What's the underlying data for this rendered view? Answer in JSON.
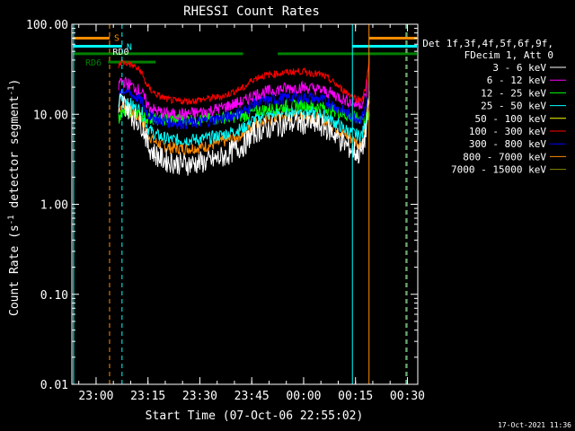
{
  "chart_data": {
    "type": "line",
    "title": "RHESSI Count Rates",
    "xlabel": "Start Time (07-Oct-06 22:55:02)",
    "ylabel": "Count Rate (s",
    "ylabel_sup": "-1",
    "ylabel_tail": " detector segment",
    "ylabel_close": ")",
    "yscale": "log",
    "ylim": [
      0.01,
      100
    ],
    "xlim_min": [
      -2.0,
      98.0
    ],
    "x_ticks": [
      {
        "x": 5,
        "label": "23:00"
      },
      {
        "x": 20,
        "label": "23:15"
      },
      {
        "x": 35,
        "label": "23:30"
      },
      {
        "x": 50,
        "label": "23:45"
      },
      {
        "x": 65,
        "label": "00:00"
      },
      {
        "x": 80,
        "label": "00:15"
      },
      {
        "x": 95,
        "label": "00:30"
      }
    ],
    "y_ticks": [
      {
        "y": 100,
        "label": "100.00"
      },
      {
        "y": 10,
        "label": "10.00"
      },
      {
        "y": 1,
        "label": "1.00"
      },
      {
        "y": 0.1,
        "label": "0.10"
      },
      {
        "y": 0.01,
        "label": "0.01"
      }
    ],
    "legend_header": [
      "Det 1f,3f,4f,5f,6f,9f,",
      "FDecim 1, Att 0"
    ],
    "legend_position": "right-outside",
    "series": [
      {
        "name": "3 - 6 keV",
        "color": "#ffffff",
        "x": [
          11.5,
          12,
          14,
          16,
          18,
          19,
          20,
          22,
          24,
          26,
          28,
          30,
          32,
          35,
          38,
          42,
          45,
          48,
          50,
          52,
          55,
          58,
          61,
          64,
          67,
          70,
          72,
          74,
          76,
          78,
          80,
          81,
          82,
          83,
          84
        ],
        "y": [
          11,
          14,
          12,
          9,
          8,
          6.5,
          4.5,
          3.6,
          3.2,
          3.0,
          2.9,
          2.8,
          2.8,
          2.9,
          3.0,
          3.4,
          4.0,
          4.6,
          6.0,
          6.6,
          7.0,
          7.5,
          7.9,
          8.0,
          7.8,
          7.4,
          6.8,
          6.0,
          5.0,
          4.3,
          3.8,
          3.6,
          4.0,
          6.5,
          14
        ]
      },
      {
        "name": "6 - 12 keV",
        "color": "#ff00ff",
        "x": [
          11.5,
          12,
          14,
          16,
          18,
          19,
          20,
          22,
          24,
          26,
          28,
          30,
          32,
          35,
          38,
          42,
          45,
          48,
          50,
          52,
          55,
          58,
          61,
          64,
          67,
          70,
          72,
          74,
          76,
          78,
          80,
          81,
          82,
          83,
          84
        ],
        "y": [
          20,
          24,
          22,
          20,
          18,
          15,
          12.5,
          11,
          10.5,
          10,
          10,
          10,
          10.2,
          10.5,
          11,
          12,
          13,
          14,
          16,
          17,
          18,
          19,
          19.5,
          20,
          19.5,
          18.5,
          17.5,
          16.5,
          15,
          14,
          13,
          13,
          13.5,
          16,
          42
        ]
      },
      {
        "name": "12 - 25 keV",
        "color": "#00ff00",
        "x": [
          11.5,
          14,
          16,
          18,
          20,
          24,
          28,
          32,
          36,
          40,
          44,
          48,
          50,
          52,
          55,
          58,
          61,
          64,
          67,
          70,
          72,
          74,
          76,
          78,
          80,
          82,
          84
        ],
        "y": [
          9,
          11,
          10,
          9.5,
          9,
          8.8,
          8.8,
          8.8,
          8.8,
          9,
          9.3,
          9.6,
          10.5,
          11,
          11.5,
          12,
          12.5,
          12.8,
          12.5,
          12,
          11.5,
          11,
          10.2,
          9.5,
          9,
          9,
          9.5
        ]
      },
      {
        "name": "25 - 50 keV",
        "color": "#00ffff",
        "x": [
          11.5,
          12,
          14,
          16,
          18,
          19,
          20,
          22,
          24,
          26,
          28,
          30,
          32,
          35,
          38,
          42,
          45,
          48,
          50,
          52,
          55,
          58,
          61,
          64,
          67,
          70,
          72,
          74,
          76,
          78,
          80,
          81,
          82,
          83,
          84
        ],
        "y": [
          13,
          15,
          14,
          12,
          11,
          9,
          7,
          6,
          5.6,
          5.3,
          5.2,
          5.2,
          5.2,
          5.3,
          5.5,
          6,
          6.5,
          7.2,
          8.5,
          9.2,
          9.8,
          10.3,
          10.6,
          10.8,
          10.5,
          10,
          9.2,
          8.2,
          7.2,
          6.5,
          6,
          5.8,
          6,
          9,
          18
        ]
      },
      {
        "name": "50 - 100 keV",
        "color": "#ffff00",
        "x": [],
        "y": []
      },
      {
        "name": "100 - 300 keV",
        "color": "#ff0000",
        "x": [
          11.5,
          12,
          14,
          16,
          18,
          19,
          20,
          22,
          24,
          26,
          28,
          30,
          32,
          35,
          38,
          42,
          45,
          48,
          50,
          52,
          55,
          58,
          61,
          64,
          67,
          70,
          72,
          74,
          76,
          78,
          80,
          81,
          82,
          83,
          84
        ],
        "y": [
          33,
          38,
          37,
          34,
          30,
          24,
          20,
          17,
          15.5,
          14.5,
          14,
          14,
          14,
          14.5,
          15,
          16,
          18,
          20,
          24,
          26,
          27.5,
          28.5,
          29.5,
          30,
          29,
          27.5,
          25,
          22,
          19,
          17,
          15,
          14.5,
          15,
          20,
          45
        ]
      },
      {
        "name": "300 - 800 keV",
        "color": "#0000ff",
        "x": [
          11.5,
          12,
          14,
          16,
          18,
          19,
          20,
          22,
          24,
          26,
          28,
          30,
          32,
          35,
          38,
          42,
          45,
          48,
          50,
          52,
          55,
          58,
          61,
          64,
          67,
          70,
          72,
          74,
          76,
          78,
          80,
          81,
          82,
          83,
          84
        ],
        "y": [
          16,
          19,
          18,
          16,
          14.5,
          12,
          10,
          9,
          8.5,
          8.2,
          8,
          8,
          8,
          8.2,
          8.5,
          9.2,
          10,
          11,
          12.5,
          13.5,
          14.2,
          14.8,
          15.3,
          15.5,
          15.2,
          14.5,
          13.5,
          12.2,
          11,
          10,
          9.2,
          9,
          9.3,
          12,
          24
        ]
      },
      {
        "name": "800 - 7000 keV",
        "color": "#ff8c00",
        "x": [
          11.5,
          12,
          14,
          16,
          18,
          19,
          20,
          22,
          24,
          26,
          28,
          30,
          32,
          35,
          38,
          42,
          45,
          48,
          50,
          52,
          55,
          58,
          61,
          64,
          67,
          70,
          72,
          74,
          76,
          78,
          80,
          81,
          82,
          83,
          84
        ],
        "y": [
          11,
          12.5,
          11.5,
          10,
          9,
          7.5,
          6,
          5,
          4.5,
          4.3,
          4.2,
          4.2,
          4.2,
          4.3,
          4.5,
          5,
          5.5,
          6.2,
          7.5,
          8.2,
          8.8,
          9.3,
          9.6,
          9.8,
          9.5,
          9,
          8.2,
          7.2,
          6.3,
          5.6,
          5,
          4.8,
          5,
          7.5,
          16
        ]
      },
      {
        "name": "7000 - 15000 keV",
        "color": "#8c8c00",
        "x": [],
        "y": []
      }
    ],
    "bars": [
      {
        "label": "S",
        "color": "#ff8c00",
        "y": 70,
        "segments": [
          [
            -2,
            8.9
          ],
          [
            83.9,
            98
          ]
        ]
      },
      {
        "label": "N",
        "color": "#00ffff",
        "y": 57,
        "segments": [
          [
            -2,
            12.5
          ],
          [
            79,
            98
          ]
        ]
      },
      {
        "label": "RD0",
        "color": "#008000",
        "y": 47,
        "segments": [
          [
            -2,
            47.5
          ],
          [
            57.5,
            98
          ]
        ]
      },
      {
        "label": "RD6",
        "color": "#008000",
        "y": 38,
        "segments": [
          [
            8.5,
            22.2
          ]
        ]
      }
    ],
    "vlines": [
      {
        "x": -1.5,
        "color": "#00ffff",
        "style": "solid"
      },
      {
        "x": 8.9,
        "color": "#ff8c00",
        "style": "dashed"
      },
      {
        "x": 12.5,
        "color": "#00ffff",
        "style": "dashed"
      },
      {
        "x": 79.1,
        "color": "#00ffff",
        "style": "solid"
      },
      {
        "x": 83.9,
        "color": "#ff8c00",
        "style": "solid"
      },
      {
        "x": 94.6,
        "color": "#00ffff",
        "style": "dashed"
      },
      {
        "x": 94.9,
        "color": "#ff8c00",
        "style": "dashed"
      }
    ],
    "timestamp": "17-Oct-2021 11:36"
  }
}
